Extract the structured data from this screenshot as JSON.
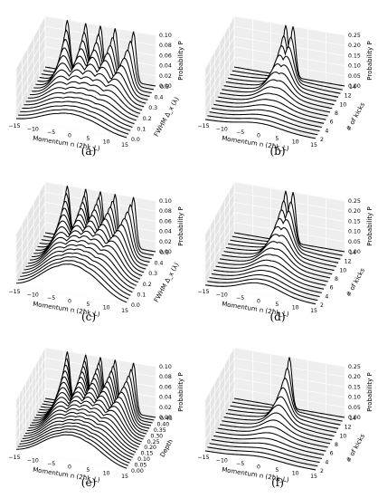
{
  "chart_data": [
    {
      "type": "line",
      "panel_label": "(a)",
      "xlabel": "Momentum n (2ħk_L)",
      "xticks": [
        "−15",
        "−10",
        "−5",
        "0",
        "5",
        "10",
        "15"
      ],
      "ylabel": "FWHM Δ_x (λ)",
      "yticks": [
        "0.0",
        "0.1",
        "0.2",
        "0.3",
        "0.4",
        "0.5"
      ],
      "zlabel": "Probability P",
      "zticks": [
        "0.00",
        "0.02",
        "0.04",
        "0.06",
        "0.08",
        "0.10"
      ],
      "x_range": [
        -15,
        15
      ],
      "y_range": [
        0.0,
        0.5
      ],
      "z_range": [
        0.0,
        0.1
      ],
      "grid": true,
      "series_count": 16,
      "ridge_summary": {
        "back_row_peaks_n": [
          -9,
          -4,
          0,
          4,
          9
        ],
        "back_row_peak_p": 0.1,
        "front_row_shape": "single broad hump centered at n = 0",
        "front_row_peak_p": 0.03
      }
    },
    {
      "type": "line",
      "panel_label": "(b)",
      "xlabel": "Momentum n (2ħk_L)",
      "xticks": [
        "−15",
        "−10",
        "−5",
        "0",
        "5",
        "10",
        "15"
      ],
      "ylabel": "# of kicks",
      "yticks": [
        "2",
        "4",
        "6",
        "8",
        "10",
        "12",
        "14"
      ],
      "zlabel": "Probability P",
      "zticks": [
        "0.00",
        "0.05",
        "0.10",
        "0.15",
        "0.20",
        "0.25"
      ],
      "x_range": [
        -15,
        15
      ],
      "y_range": [
        0,
        14
      ],
      "z_range": [
        0.0,
        0.27
      ],
      "grid": true,
      "series_count": 15,
      "ridge_summary": {
        "back_row_peaks_n": [
          -1,
          1
        ],
        "back_row_peak_p": 0.27,
        "front_row_shape": "low broad distribution",
        "front_row_peak_p": 0.03
      }
    },
    {
      "type": "line",
      "panel_label": "(c)",
      "xlabel": "Momentum n (2ħk_L)",
      "xticks": [
        "−15",
        "−10",
        "−5",
        "0",
        "5",
        "10",
        "15"
      ],
      "ylabel": "FWHM Δ_x (λ)",
      "yticks": [
        "0.0",
        "0.1",
        "0.2",
        "0.3",
        "0.4",
        "0.5"
      ],
      "zlabel": "Probability P",
      "zticks": [
        "0.00",
        "0.02",
        "0.04",
        "0.06",
        "0.08",
        "0.10"
      ],
      "x_range": [
        -15,
        15
      ],
      "y_range": [
        0.0,
        0.5
      ],
      "z_range": [
        0.0,
        0.1
      ],
      "grid": true,
      "series_count": 16,
      "ridge_summary": {
        "back_row_peaks_n": [
          -9,
          -4,
          0,
          4,
          9
        ],
        "back_row_peak_p": 0.1,
        "front_row_shape": "peaks persist toward large FWHM",
        "front_row_peak_p": 0.06
      }
    },
    {
      "type": "line",
      "panel_label": "(d)",
      "xlabel": "Momentum n (2ħk_L)",
      "xticks": [
        "−15",
        "−10",
        "−5",
        "0",
        "5",
        "10",
        "15"
      ],
      "ylabel": "# of kicks",
      "yticks": [
        "2",
        "4",
        "6",
        "8",
        "10",
        "12",
        "14"
      ],
      "zlabel": "Probability P",
      "zticks": [
        "0.00",
        "0.05",
        "0.10",
        "0.15",
        "0.20",
        "0.25"
      ],
      "x_range": [
        -15,
        15
      ],
      "y_range": [
        0,
        14
      ],
      "z_range": [
        0.0,
        0.27
      ],
      "grid": true,
      "series_count": 15,
      "ridge_summary": {
        "back_row_peaks_n": [
          -1,
          1
        ],
        "back_row_peak_p": 0.27,
        "front_row_shape": "multiple narrow peaks spreading outward",
        "front_row_peak_p": 0.06
      }
    },
    {
      "type": "line",
      "panel_label": "(e)",
      "xlabel": "Momentum n (2ħk_L)",
      "xticks": [
        "−15",
        "−10",
        "−5",
        "0",
        "5",
        "10",
        "15"
      ],
      "ylabel": "Depth",
      "yticks": [
        "0.00",
        "0.05",
        "0.10",
        "0.15",
        "0.20",
        "0.25",
        "0.30",
        "0.35",
        "0.40",
        "0.45"
      ],
      "zlabel": "Probability P",
      "zticks": [
        "0.00",
        "0.02",
        "0.04",
        "0.06",
        "0.08",
        "0.10"
      ],
      "x_range": [
        -15,
        15
      ],
      "y_range": [
        0.0,
        0.45
      ],
      "z_range": [
        0.0,
        0.1
      ],
      "grid": true,
      "series_count": 20,
      "ridge_summary": {
        "back_row_peaks_n": [
          -9,
          -4,
          0,
          4,
          9
        ],
        "back_row_peak_p": 0.1,
        "front_row_shape": "broad hump centered at n = 0",
        "front_row_peak_p": 0.05
      }
    },
    {
      "type": "line",
      "panel_label": "(f)",
      "xlabel": "Momentum n (2ħk_L)",
      "xticks": [
        "−15",
        "−10",
        "−5",
        "0",
        "5",
        "10",
        "15"
      ],
      "ylabel": "# of kicks",
      "yticks": [
        "2",
        "4",
        "6",
        "8",
        "10",
        "12",
        "14"
      ],
      "zlabel": "Probability P",
      "zticks": [
        "0.00",
        "0.05",
        "0.10",
        "0.15",
        "0.20",
        "0.25"
      ],
      "x_range": [
        -15,
        15
      ],
      "y_range": [
        0,
        14
      ],
      "z_range": [
        0.0,
        0.27
      ],
      "grid": true,
      "series_count": 15,
      "ridge_summary": {
        "back_row_peaks_n": [
          0
        ],
        "back_row_peak_p": 0.27,
        "front_row_shape": "broad low distribution",
        "front_row_peak_p": 0.02
      }
    }
  ]
}
